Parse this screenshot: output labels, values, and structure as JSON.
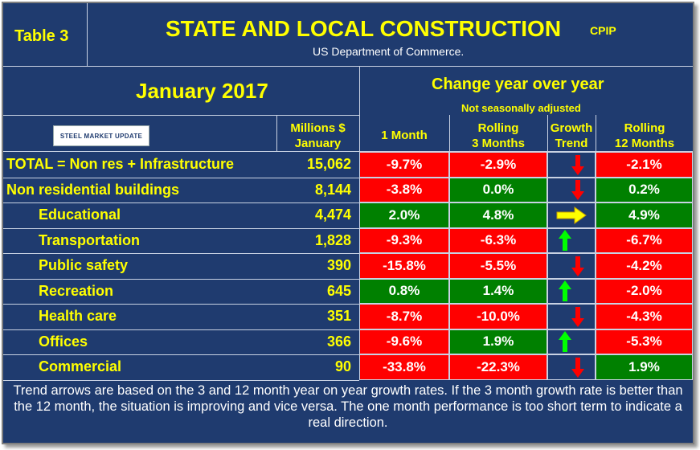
{
  "table_label": "Table 3",
  "title": "STATE AND LOCAL CONSTRUCTION",
  "title_tag": "CPIP",
  "subtitle": "US Department of Commerce.",
  "period": "January 2017",
  "change_header": "Change year over year",
  "change_subheader": "Not seasonally adjusted",
  "logo_text": "STEEL MARKET UPDATE",
  "columns": {
    "millions": [
      "Millions $",
      "January"
    ],
    "one_month": "1 Month",
    "rolling3": [
      "Rolling",
      "3 Months"
    ],
    "trend": [
      "Growth",
      "Trend"
    ],
    "rolling12": [
      "Rolling",
      "12 Months"
    ]
  },
  "colors": {
    "background": "#1f3b6f",
    "negative": "#ff0000",
    "positive": "#008000",
    "label_text": "#ffff00",
    "arrow_up": "#00ff00",
    "arrow_down": "#ff0000",
    "arrow_flat": "#ffff00"
  },
  "chart_data": {
    "type": "table",
    "title": "STATE AND LOCAL CONSTRUCTION",
    "rows": [
      {
        "label": "TOTAL = Non res + Infrastructure",
        "millions": "15,062",
        "one_month": "-9.7%",
        "rolling3": "-2.9%",
        "trend": "down",
        "rolling12": "-2.1%",
        "indent": false
      },
      {
        "label": "Non residential buildings",
        "millions": "8,144",
        "one_month": "-3.8%",
        "rolling3": "0.0%",
        "trend": "down",
        "rolling12": "0.2%",
        "indent": false
      },
      {
        "label": "Educational",
        "millions": "4,474",
        "one_month": "2.0%",
        "rolling3": "4.8%",
        "trend": "flat",
        "rolling12": "4.9%",
        "indent": true
      },
      {
        "label": "Transportation",
        "millions": "1,828",
        "one_month": "-9.3%",
        "rolling3": "-6.3%",
        "trend": "up",
        "rolling12": "-6.7%",
        "indent": true
      },
      {
        "label": "Public safety",
        "millions": "390",
        "one_month": "-15.8%",
        "rolling3": "-5.5%",
        "trend": "down",
        "rolling12": "-4.2%",
        "indent": true
      },
      {
        "label": "Recreation",
        "millions": "645",
        "one_month": "0.8%",
        "rolling3": "1.4%",
        "trend": "up",
        "rolling12": "-2.0%",
        "indent": true
      },
      {
        "label": "Health care",
        "millions": "351",
        "one_month": "-8.7%",
        "rolling3": "-10.0%",
        "trend": "down",
        "rolling12": "-4.3%",
        "indent": true
      },
      {
        "label": "Offices",
        "millions": "366",
        "one_month": "-9.6%",
        "rolling3": "1.9%",
        "trend": "up",
        "rolling12": "-5.3%",
        "indent": true
      },
      {
        "label": "Commercial",
        "millions": "90",
        "one_month": "-33.8%",
        "rolling3": "-22.3%",
        "trend": "down",
        "rolling12": "1.9%",
        "indent": true
      }
    ]
  },
  "footnote": "Trend arrows are based on the 3 and 12 month year on year growth rates. If the 3 month growth rate is better than the 12 month, the situation is improving and vice versa. The one month performance is too short term to indicate a real direction."
}
